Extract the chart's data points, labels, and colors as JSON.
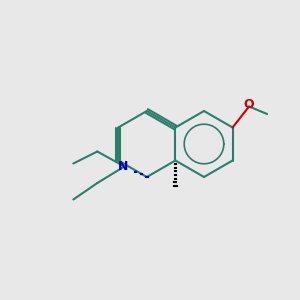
{
  "background_color": "#e8e8e8",
  "bond_color": "#2d7d6b",
  "aromatic_color": "#2d7d6b",
  "N_color": "#0000cc",
  "O_color": "#cc0000",
  "methyl_color": "#000000",
  "line_width": 1.5,
  "fig_size": [
    3.0,
    3.0
  ],
  "dpi": 100
}
